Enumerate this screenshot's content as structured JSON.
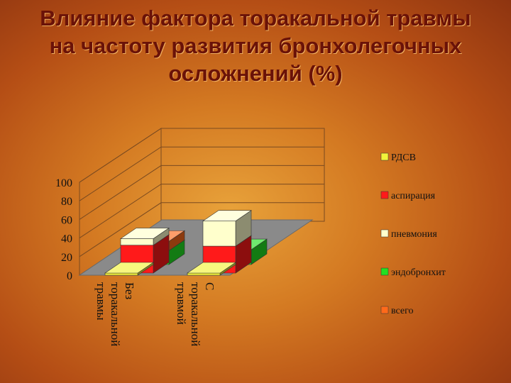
{
  "title_lines": [
    "Влияние фактора торакальной травмы",
    "на частоту развития бронхолегочных",
    "осложнений (%)"
  ],
  "chart_data": {
    "type": "bar",
    "subtype": "3d-stacked",
    "categories": [
      "Без торакальной травмы",
      "С торакальной травмой"
    ],
    "category_lines": [
      [
        "Без",
        "торакальной",
        "травмы"
      ],
      [
        "С",
        "торакальной",
        "травмой"
      ]
    ],
    "series": [
      {
        "name": "РДСВ",
        "color": "#f2f23a",
        "values": [
          3,
          3
        ]
      },
      {
        "name": "аспирация",
        "color": "#ff1a1a",
        "values": [
          30,
          29
        ]
      },
      {
        "name": "пневмония",
        "color": "#ffffcc",
        "values": [
          7,
          27
        ]
      },
      {
        "name": "эндобронхит",
        "color": "#22e022",
        "values": [
          15,
          16
        ]
      },
      {
        "name": "всего",
        "color": "#ff6a1a",
        "values": [
          10,
          0
        ]
      }
    ],
    "y_ticks": [
      "0",
      "20",
      "40",
      "60",
      "80",
      "100"
    ],
    "ylim": [
      0,
      100
    ],
    "grid": true,
    "legend_position": "right"
  }
}
